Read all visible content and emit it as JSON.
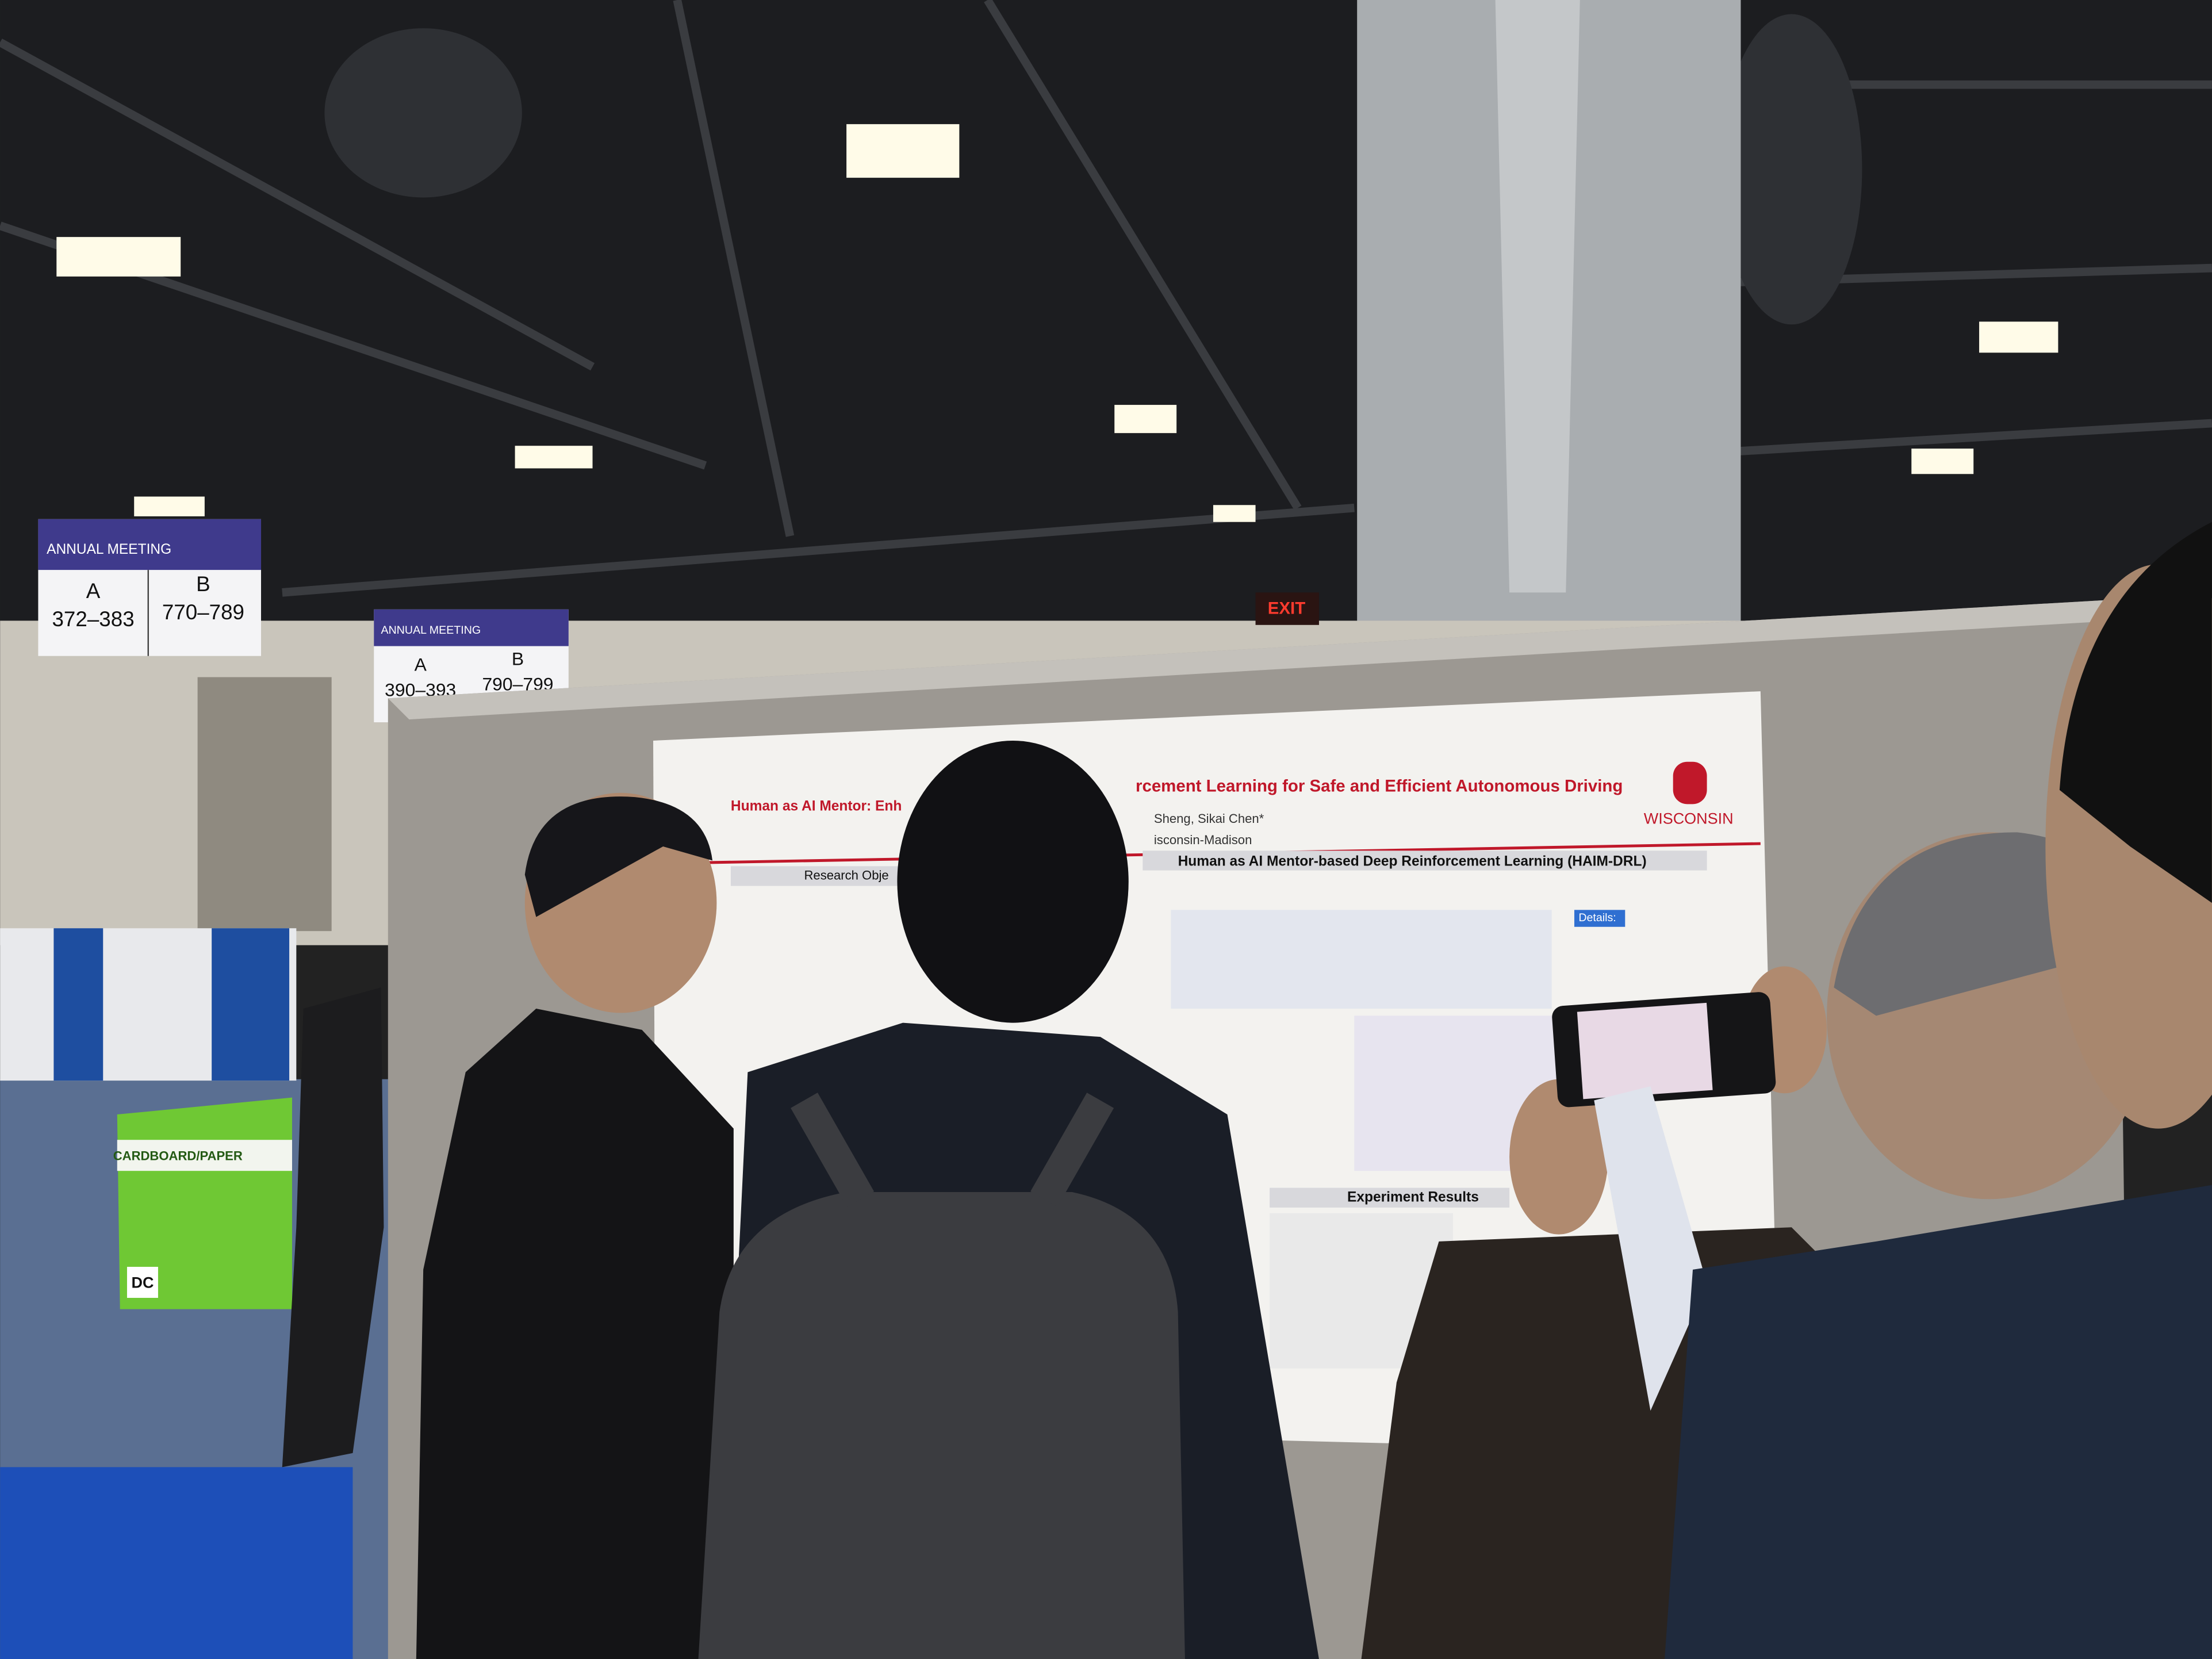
{
  "signs": [
    {
      "title": "ANNUAL MEETING",
      "a_label": "A",
      "a_range": "372–383",
      "b_label": "B",
      "b_range": "770–789"
    },
    {
      "title": "ANNUAL MEETING",
      "a_label": "A",
      "a_range": "390–393",
      "b_label": "B",
      "b_range": "790–799"
    }
  ],
  "exit_sign": "EXIT",
  "recycling_bin": {
    "label": "CARDBOARD/PAPER",
    "logo": "DC"
  },
  "poster": {
    "title_left": "Human as AI Mentor: Enh",
    "title_right": "rcement Learning for Safe and Efficient Autonomous Driving",
    "authors": "Sheng, Sikai Chen*",
    "affiliation": "isconsin-Madison",
    "logo": "WISCONSIN",
    "section_left": "Research Obje",
    "section_main": "Human as AI Mentor-based Deep Reinforcement Learning (HAIM-DRL)",
    "section_results": "Experiment Results",
    "details": "Details:"
  }
}
